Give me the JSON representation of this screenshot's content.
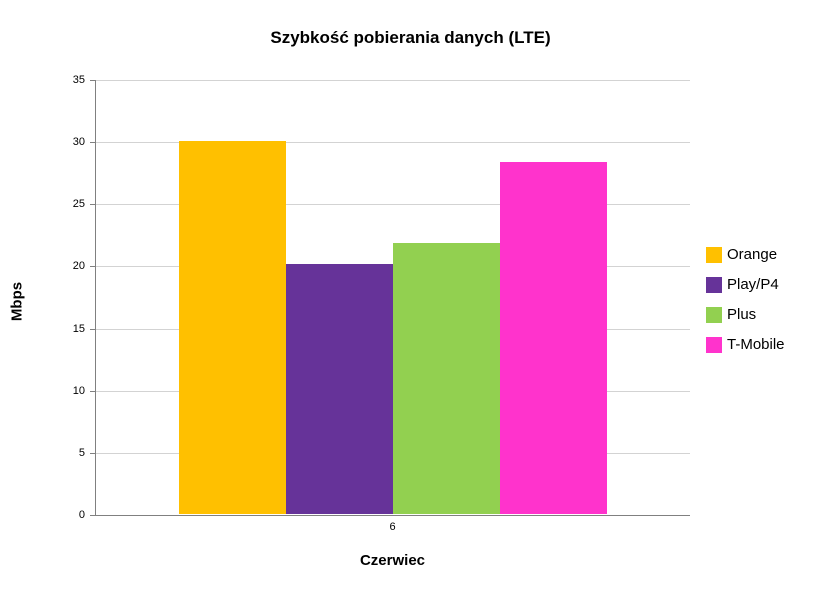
{
  "chart_data": {
    "type": "bar",
    "title": "Szybkość pobierania danych (LTE)",
    "xlabel": "Czerwiec",
    "ylabel": "Mbps",
    "categories": [
      "6"
    ],
    "series": [
      {
        "name": "Orange",
        "values": [
          30.0
        ],
        "color": "#FFC000"
      },
      {
        "name": "Play/P4",
        "values": [
          20.1
        ],
        "color": "#663399"
      },
      {
        "name": "Plus",
        "values": [
          21.8
        ],
        "color": "#92D050"
      },
      {
        "name": "T-Mobile",
        "values": [
          28.3
        ],
        "color": "#FF33CC"
      }
    ],
    "ylim": [
      0,
      35
    ],
    "ytick_step": 5,
    "grid": true,
    "legend_position": "right"
  },
  "colors": {
    "axis": "#808080",
    "grid": "#D3D3D3",
    "text": "#000000"
  }
}
